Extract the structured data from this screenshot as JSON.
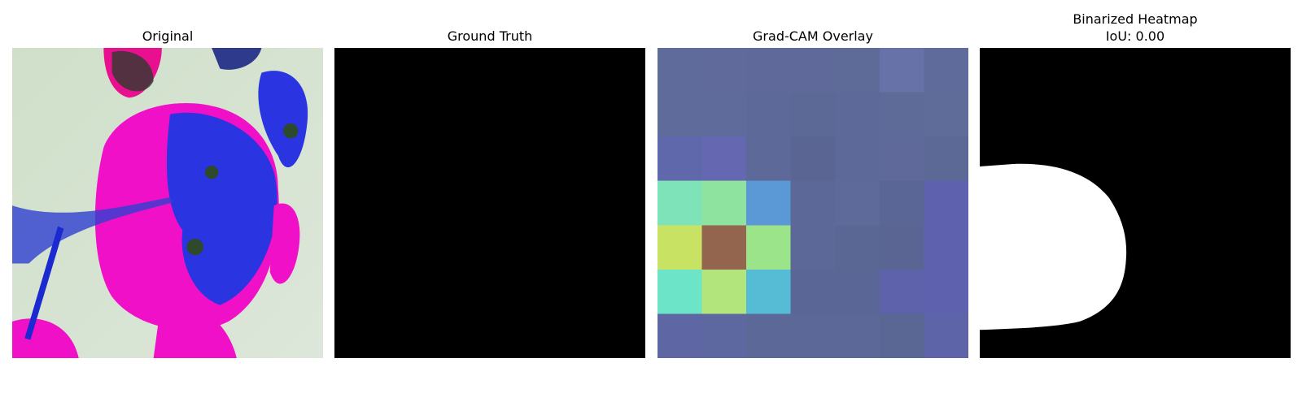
{
  "panels": [
    {
      "title": [
        "Original"
      ]
    },
    {
      "title": [
        "Ground Truth"
      ]
    },
    {
      "title": [
        "Grad-CAM Overlay"
      ]
    },
    {
      "title": [
        "Binarized Heatmap",
        "IoU: 0.00"
      ]
    }
  ]
}
